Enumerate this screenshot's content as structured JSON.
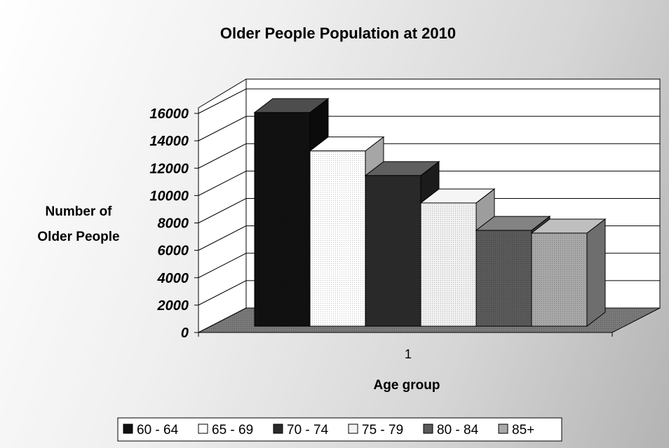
{
  "chart_data": {
    "type": "bar",
    "title": "Older People Population at 2010",
    "xlabel": "Age group",
    "ylabel_lines": [
      "Number of",
      "Older People"
    ],
    "categories": [
      "1"
    ],
    "ylim": [
      0,
      16000
    ],
    "yticks": [
      0,
      2000,
      4000,
      6000,
      8000,
      10000,
      12000,
      14000,
      16000
    ],
    "grid": true,
    "legend_position": "bottom",
    "series": [
      {
        "name": "60 - 64",
        "values": [
          15600
        ],
        "color": "#111111"
      },
      {
        "name": "65 - 69",
        "values": [
          12800
        ],
        "color": "#ffffff"
      },
      {
        "name": "70 - 74",
        "values": [
          11000
        ],
        "color": "#2a2a2a"
      },
      {
        "name": "75 - 79",
        "values": [
          9000
        ],
        "color": "#f2f2f2"
      },
      {
        "name": "80 - 84",
        "values": [
          7000
        ],
        "color": "#5a5a5a"
      },
      {
        "name": "85+",
        "values": [
          6800
        ],
        "color": "#a9a9a9"
      }
    ]
  }
}
